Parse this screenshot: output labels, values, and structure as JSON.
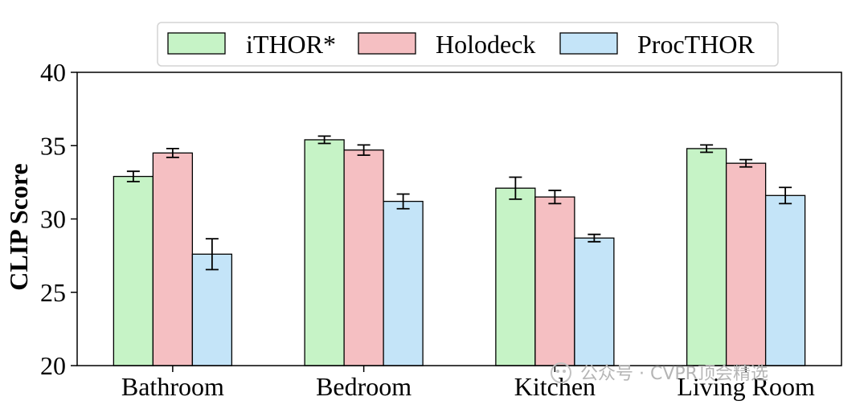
{
  "chart_data": {
    "type": "bar",
    "title": "",
    "xlabel": "",
    "ylabel": "CLIP Score",
    "ylim": [
      20,
      40
    ],
    "yticks": [
      20,
      25,
      30,
      35,
      40
    ],
    "grid": false,
    "legend_position": "top-center",
    "categories": [
      "Bathroom",
      "Bedroom",
      "Kitchen",
      "Living Room"
    ],
    "series": [
      {
        "name": "iTHOR*",
        "color": "#c6f3c6",
        "values": [
          32.9,
          35.4,
          32.1,
          34.8
        ],
        "errors": [
          0.35,
          0.25,
          0.75,
          0.25
        ]
      },
      {
        "name": "Holodeck",
        "color": "#f5bfc2",
        "values": [
          34.5,
          34.7,
          31.5,
          33.8
        ],
        "errors": [
          0.3,
          0.35,
          0.45,
          0.25
        ]
      },
      {
        "name": "ProcTHOR",
        "color": "#c4e4f8",
        "values": [
          27.6,
          31.2,
          28.7,
          31.6
        ],
        "errors": [
          1.05,
          0.5,
          0.25,
          0.55
        ]
      }
    ]
  },
  "watermark": "公众号 · CVPR顶会精选"
}
